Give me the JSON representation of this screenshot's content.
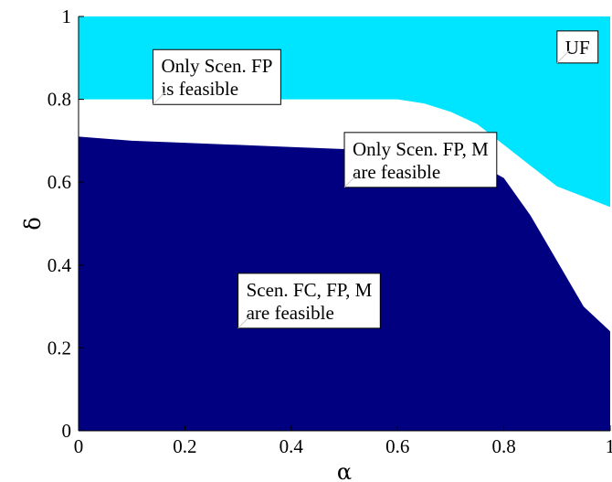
{
  "chart_data": {
    "type": "area",
    "title": "",
    "xlabel": "α",
    "ylabel": "δ",
    "xlim": [
      0,
      1
    ],
    "ylim": [
      0,
      1
    ],
    "xticks": [
      0,
      0.2,
      0.4,
      0.6,
      0.8,
      1
    ],
    "xtick_labels": [
      "0",
      "0.2",
      "0.4",
      "0.6",
      "0.8",
      "1"
    ],
    "yticks": [
      0,
      0.2,
      0.4,
      0.6,
      0.8,
      1
    ],
    "ytick_labels": [
      "0",
      "0.2",
      "0.4",
      "0.6",
      "0.8",
      "1"
    ],
    "grid": false,
    "legend": "none",
    "regions": [
      {
        "key": "uf",
        "label": "UF",
        "color": "#800000",
        "lower_boundary": {
          "x": [
            0,
            1
          ],
          "y": [
            1,
            1
          ]
        }
      },
      {
        "key": "only-fp",
        "label": "Only Scen. FP is feasible",
        "color": "#ffcc00",
        "lower_boundary": {
          "x": [
            0,
            0.1,
            0.2,
            0.3,
            0.4,
            0.5,
            0.55,
            0.6,
            0.65,
            0.7,
            0.75,
            0.8,
            0.85,
            0.9,
            0.95,
            1.0
          ],
          "y": [
            0.9,
            0.89,
            0.89,
            0.89,
            0.89,
            0.89,
            0.885,
            0.88,
            0.87,
            0.86,
            0.84,
            0.8,
            0.75,
            0.7,
            0.66,
            0.62
          ]
        }
      },
      {
        "key": "only-fp-m",
        "label": "Only Scen. FP, M are feasible",
        "color": "#00e5ff",
        "lower_boundary": {
          "x": [
            0,
            0.1,
            0.2,
            0.3,
            0.4,
            0.5,
            0.55,
            0.6,
            0.65,
            0.7,
            0.75,
            0.8,
            0.85,
            0.9,
            0.95,
            1.0
          ],
          "y": [
            0.8,
            0.8,
            0.8,
            0.8,
            0.8,
            0.8,
            0.8,
            0.8,
            0.79,
            0.77,
            0.74,
            0.69,
            0.64,
            0.59,
            0.565,
            0.54
          ]
        }
      },
      {
        "key": "all",
        "label": "Scen. FC, FP, M are feasible",
        "color": "#000080",
        "lower_boundary": {
          "x": [
            0,
            0.1,
            0.2,
            0.3,
            0.4,
            0.5,
            0.55,
            0.6,
            0.65,
            0.7,
            0.75,
            0.8,
            0.85,
            0.9,
            0.95,
            1.0
          ],
          "y": [
            0.71,
            0.7,
            0.695,
            0.69,
            0.685,
            0.68,
            0.675,
            0.67,
            0.665,
            0.66,
            0.645,
            0.61,
            0.52,
            0.41,
            0.3,
            0.24
          ]
        }
      }
    ],
    "annotations": [
      {
        "key": "uf",
        "lines": [
          "UF"
        ],
        "x": 0.9,
        "y": 0.965
      },
      {
        "key": "only-fp",
        "lines": [
          "Only Scen. FP",
          "is feasible"
        ],
        "x": 0.14,
        "y": 0.92
      },
      {
        "key": "only-fp-m",
        "lines": [
          "Only Scen. FP, M",
          "are feasible"
        ],
        "x": 0.5,
        "y": 0.72
      },
      {
        "key": "all",
        "lines": [
          "Scen. FC, FP, M",
          "are feasible"
        ],
        "x": 0.3,
        "y": 0.38
      }
    ]
  }
}
